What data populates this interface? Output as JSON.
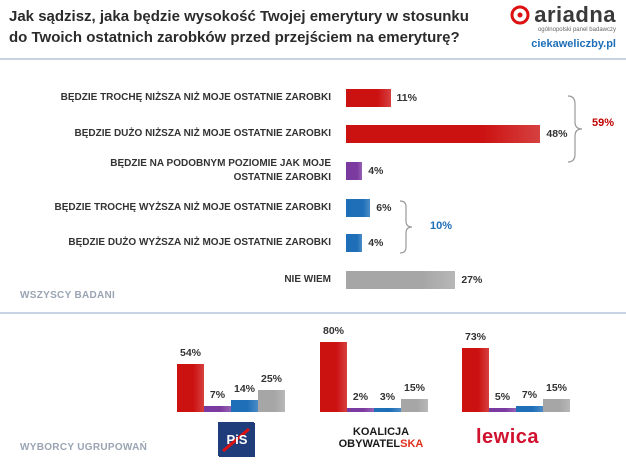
{
  "header": {
    "title_line1": "Jak sądzisz, jaka będzie wysokość Twojej emerytury w stosunku",
    "title_line2": "do Twoich ostatnich zarobków przed przejściem na emeryturę?",
    "brand_name": "ariadna",
    "brand_sub": "ogólnopolski panel badawczy",
    "brand_url": "ciekaweliczby.pl"
  },
  "colors": {
    "red": "#cc1111",
    "purple": "#7b3aa0",
    "blue": "#1e6fb8",
    "gray": "#a6a6a6",
    "group_red_text": "#c00000",
    "group_blue_text": "#1e6fb8"
  },
  "chart_data": [
    {
      "type": "bar",
      "orientation": "horizontal",
      "section_label": "WSZYSCY BADANI",
      "categories": [
        "BĘDZIE TROCHĘ NIŻSZA NIŻ MOJE OSTATNIE ZAROBKI",
        "BĘDZIE DUŻO NIŻSZA NIŻ MOJE OSTATNIE ZAROBKI",
        "BĘDZIE NA PODOBNYM POZIOMIE JAK MOJE OSTATNIE ZAROBKI",
        "BĘDZIE TROCHĘ WYŻSZA NIŻ MOJE OSTATNIE ZAROBKI",
        "BĘDZIE DUŻO WYŻSZA NIŻ MOJE OSTATNIE ZAROBKI",
        "NIE WIEM"
      ],
      "category_lines": [
        [
          "BĘDZIE TROCHĘ NIŻSZA NIŻ MOJE OSTATNIE ZAROBKI"
        ],
        [
          "BĘDZIE DUŻO NIŻSZA NIŻ MOJE OSTATNIE ZAROBKI"
        ],
        [
          "BĘDZIE NA PODOBNYM POZIOMIE JAK MOJE",
          "OSTATNIE ZAROBKI"
        ],
        [
          "BĘDZIE TROCHĘ WYŻSZA NIŻ MOJE OSTATNIE ZAROBKI"
        ],
        [
          "BĘDZIE DUŻO WYŻSZA NIŻ MOJE OSTATNIE ZAROBKI"
        ],
        [
          "NIE WIEM"
        ]
      ],
      "values": [
        11,
        48,
        4,
        6,
        4,
        27
      ],
      "value_labels": [
        "11%",
        "48%",
        "4%",
        "6%",
        "4%",
        "27%"
      ],
      "bar_colors": [
        "red",
        "red",
        "purple",
        "blue",
        "blue",
        "gray"
      ],
      "groups": [
        {
          "label": "59%",
          "categories": [
            0,
            1
          ],
          "color": "group_red_text"
        },
        {
          "label": "10%",
          "categories": [
            3,
            4
          ],
          "color": "group_blue_text"
        }
      ]
    },
    {
      "type": "bar",
      "orientation": "vertical",
      "section_label": "WYBORCY UGRUPOWAŃ",
      "parties": [
        {
          "logo": "pis-logo",
          "logo_text": "PiS",
          "values": [
            54,
            7,
            14,
            25
          ],
          "value_labels": [
            "54%",
            "7%",
            "14%",
            "25%"
          ]
        },
        {
          "logo": "ko-logo",
          "logo_text_line1": "KOALICJA",
          "logo_text_line2_a": "OBYWATEL",
          "logo_text_line2_b": "SKA",
          "values": [
            80,
            2,
            3,
            15
          ],
          "value_labels": [
            "80%",
            "2%",
            "3%",
            "15%"
          ]
        },
        {
          "logo": "lewica-logo",
          "logo_text": "lewica",
          "values": [
            73,
            5,
            7,
            15
          ],
          "value_labels": [
            "73%",
            "5%",
            "7%",
            "15%"
          ]
        }
      ],
      "series_colors": [
        "red",
        "purple",
        "blue",
        "gray"
      ]
    }
  ]
}
